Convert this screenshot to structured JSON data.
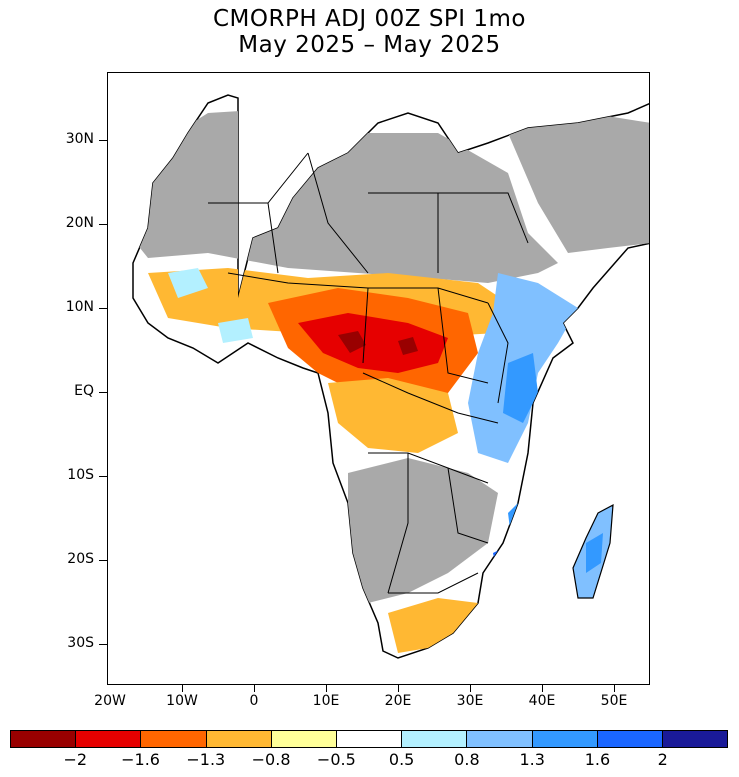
{
  "title": {
    "line1": "CMORPH ADJ 00Z SPI 1mo",
    "line2": "May 2025 – May 2025"
  },
  "map": {
    "region": "Africa",
    "no_data_color": "#a9a9a9",
    "latitude_labels": [
      "30N",
      "20N",
      "10N",
      "EQ",
      "10S",
      "20S",
      "30S"
    ],
    "longitude_labels": [
      "20W",
      "10W",
      "0",
      "10E",
      "20E",
      "30E",
      "40E",
      "50E"
    ]
  },
  "legend": {
    "colors": [
      "#990000",
      "#e60000",
      "#ff6600",
      "#ffb833",
      "#ffff99",
      "#ffffff",
      "#b3f0ff",
      "#80c0ff",
      "#3399ff",
      "#1a66ff",
      "#1a1a99"
    ],
    "labels": [
      "−2",
      "−1.6",
      "−1.3",
      "−0.8",
      "−0.5",
      "0.5",
      "0.8",
      "1.3",
      "1.6",
      "2"
    ]
  }
}
